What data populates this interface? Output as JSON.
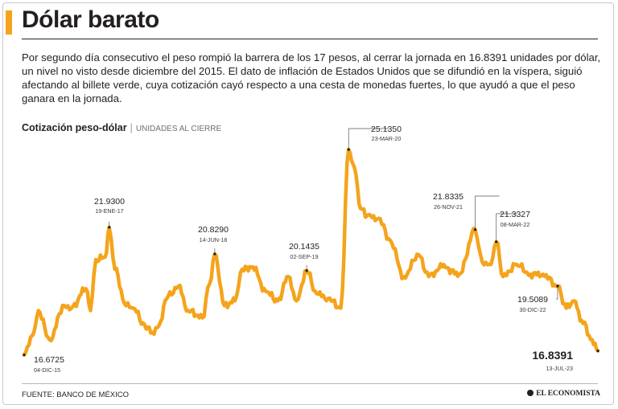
{
  "header": {
    "title": "Dólar barato",
    "lede": "Por segundo día consecutivo el peso rompió la barrera de los 17 pesos, al cerrar la jornada en 16.8391 unidades por dólar, un nivel no visto desde diciembre del 2015. El dato de inflación de Estados Unidos que se difundió en la víspera, siguió afectando al billete verde, cuya cotización cayó respecto a una cesta de monedas fuertes, lo que ayudó a que el peso ganara en la jornada."
  },
  "chart_header": {
    "title": "Cotización peso-dólar",
    "separator": "|",
    "units": "UNIDADES AL CIERRE"
  },
  "footer": {
    "source": "FUENTE: BANCO DE MÉXICO",
    "brand": "EL ECONOMISTA"
  },
  "colors": {
    "accent": "#f4a41c",
    "line": "#f4a41c",
    "text": "#231f20"
  },
  "chart_data": {
    "type": "line",
    "title": "Cotización peso-dólar",
    "ylabel": "Unidades al cierre",
    "xlabel": "",
    "x_range": [
      "2015-12-04",
      "2023-07-13"
    ],
    "ylim": [
      16.0,
      25.8
    ],
    "grid": false,
    "series": [
      {
        "name": "Cotización peso-dólar",
        "points": [
          [
            "2015-12-04",
            16.6725
          ],
          [
            "2016-01-20",
            17.6
          ],
          [
            "2016-02-11",
            18.5
          ],
          [
            "2016-04-05",
            17.3
          ],
          [
            "2016-06-15",
            18.7
          ],
          [
            "2016-07-20",
            18.6
          ],
          [
            "2016-09-28",
            19.4
          ],
          [
            "2016-10-20",
            18.5
          ],
          [
            "2016-11-15",
            20.6
          ],
          [
            "2016-12-30",
            20.7
          ],
          [
            "2017-01-19",
            21.93
          ],
          [
            "2017-02-15",
            20.2
          ],
          [
            "2017-04-10",
            18.7
          ],
          [
            "2017-05-15",
            18.6
          ],
          [
            "2017-07-10",
            17.9
          ],
          [
            "2017-08-15",
            17.6
          ],
          [
            "2017-09-10",
            17.8
          ],
          [
            "2017-11-01",
            19.1
          ],
          [
            "2017-12-20",
            19.5
          ],
          [
            "2018-02-05",
            18.5
          ],
          [
            "2018-04-15",
            18.2
          ],
          [
            "2018-05-20",
            19.6
          ],
          [
            "2018-06-14",
            20.829
          ],
          [
            "2018-07-31",
            18.7
          ],
          [
            "2018-09-20",
            18.9
          ],
          [
            "2018-10-25",
            20.2
          ],
          [
            "2018-12-15",
            20.3
          ],
          [
            "2019-02-15",
            19.3
          ],
          [
            "2019-04-15",
            18.9
          ],
          [
            "2019-06-05",
            19.9
          ],
          [
            "2019-07-15",
            18.9
          ],
          [
            "2019-09-02",
            20.1435
          ],
          [
            "2019-10-20",
            19.2
          ],
          [
            "2019-12-15",
            19.0
          ],
          [
            "2020-02-14",
            18.6
          ],
          [
            "2020-03-23",
            25.135
          ],
          [
            "2020-04-20",
            24.4
          ],
          [
            "2020-05-20",
            22.7
          ],
          [
            "2020-06-20",
            22.4
          ],
          [
            "2020-08-15",
            22.3
          ],
          [
            "2020-10-10",
            21.4
          ],
          [
            "2020-12-15",
            19.9
          ],
          [
            "2021-02-25",
            20.8
          ],
          [
            "2021-04-15",
            19.9
          ],
          [
            "2021-06-20",
            20.3
          ],
          [
            "2021-09-10",
            20.0
          ],
          [
            "2021-11-26",
            21.8335
          ],
          [
            "2021-12-30",
            20.5
          ],
          [
            "2022-02-10",
            20.4
          ],
          [
            "2022-03-08",
            21.3327
          ],
          [
            "2022-04-10",
            19.9
          ],
          [
            "2022-06-15",
            20.4
          ],
          [
            "2022-08-20",
            20.0
          ],
          [
            "2022-10-20",
            20.0
          ],
          [
            "2022-12-30",
            19.5089
          ],
          [
            "2023-02-10",
            18.6
          ],
          [
            "2023-03-20",
            18.9
          ],
          [
            "2023-04-25",
            18.1
          ],
          [
            "2023-06-15",
            17.3
          ],
          [
            "2023-07-13",
            16.8391
          ]
        ]
      }
    ],
    "annotations": [
      {
        "value_label": "16.6725",
        "date_label": "04-DIC-15",
        "date": "2015-12-04",
        "value": 16.6725,
        "emphasis": false
      },
      {
        "value_label": "21.9300",
        "date_label": "19-ENE-17",
        "date": "2017-01-19",
        "value": 21.93,
        "emphasis": false
      },
      {
        "value_label": "20.8290",
        "date_label": "14-JUN-18",
        "date": "2018-06-14",
        "value": 20.829,
        "emphasis": false
      },
      {
        "value_label": "20.1435",
        "date_label": "02-SEP-19",
        "date": "2019-09-02",
        "value": 20.1435,
        "emphasis": false
      },
      {
        "value_label": "25.1350",
        "date_label": "23-MAR-20",
        "date": "2020-03-23",
        "value": 25.135,
        "emphasis": false
      },
      {
        "value_label": "21.8335",
        "date_label": "26-NOV-21",
        "date": "2021-11-26",
        "value": 21.8335,
        "emphasis": false
      },
      {
        "value_label": "21.3327",
        "date_label": "08-MAR-22",
        "date": "2022-03-08",
        "value": 21.3327,
        "emphasis": false
      },
      {
        "value_label": "19.5089",
        "date_label": "30-DIC-22",
        "date": "2022-12-30",
        "value": 19.5089,
        "emphasis": false
      },
      {
        "value_label": "16.8391",
        "date_label": "13-JUL-23",
        "date": "2023-07-13",
        "value": 16.8391,
        "emphasis": true
      }
    ]
  }
}
